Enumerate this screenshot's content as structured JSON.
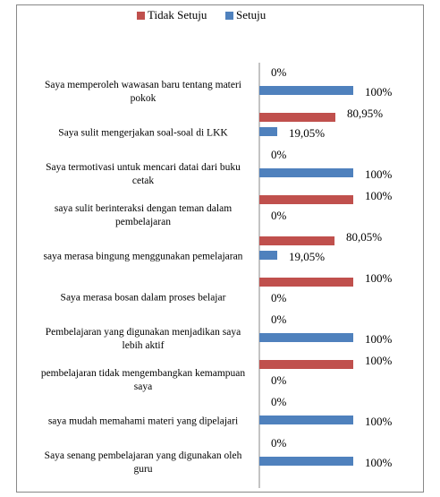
{
  "chart_data": {
    "type": "hbar",
    "categories": [
      "Saya memperoleh wawasan baru tentang materi pokok",
      "Saya sulit mengerjakan soal-soal di LKK",
      "Saya termotivasi untuk mencari datai dari buku cetak",
      "saya sulit berinteraksi dengan teman dalam pembelajaran",
      "saya merasa bingung menggunakan pemelajaran",
      "Saya merasa bosan dalam proses belajar",
      "Pembelajaran yang digunakan menjadikan saya lebih aktif",
      "pembelajaran tidak mengembangkan kemampuan saya",
      "saya mudah memahami materi yang dipelajari",
      "Saya senang pembelajaran yang digunakan oleh guru"
    ],
    "series": [
      {
        "name": "Tidak Setuju",
        "color": "#c0504d",
        "values": [
          0,
          80.95,
          0,
          100,
          80.05,
          100,
          0,
          100,
          0,
          0
        ],
        "value_labels": [
          "0%",
          "80,95%",
          "0%",
          "100%",
          "80,05%",
          "100%",
          "0%",
          "100%",
          "0%",
          "0%"
        ]
      },
      {
        "name": "Setuju",
        "color": "#4f81bd",
        "values": [
          100,
          19.05,
          100,
          0,
          19.05,
          0,
          100,
          0,
          100,
          100
        ],
        "value_labels": [
          "100%",
          "19,05%",
          "100%",
          "0%",
          "19,05%",
          "0%",
          "100%",
          "0%",
          "100%",
          "100%"
        ]
      }
    ],
    "xlim": [
      0,
      100
    ],
    "legend": "top"
  }
}
